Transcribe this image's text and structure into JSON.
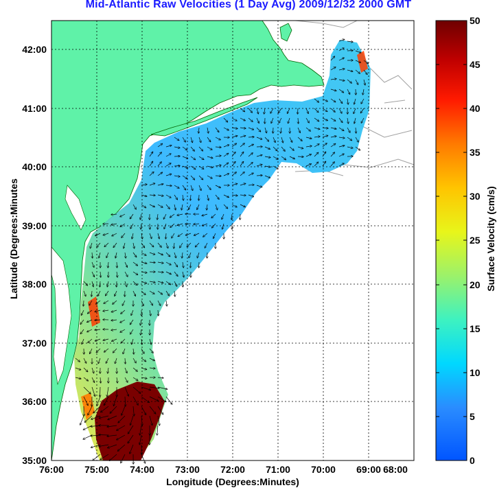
{
  "title": "Mid-Atlantic Raw Velocities (1 Day Avg) 2009/12/32 2000 GMT",
  "xlabel": "Longitude (Degrees:Minutes)",
  "ylabel": "Latitude (Degrees:Minutes",
  "colorbar": {
    "label": "Surface Velocity (cm/s)",
    "min": 0,
    "max": 50,
    "ticks": [
      "0",
      "5",
      "10",
      "15",
      "20",
      "25",
      "30",
      "35",
      "40",
      "45",
      "50"
    ]
  },
  "x_ticks": [
    "76:00",
    "75:00",
    "74:00",
    "73:00",
    "72:00",
    "71:00",
    "70:00",
    "69:00",
    "68:00"
  ],
  "y_ticks": [
    "35:00",
    "36:00",
    "37:00",
    "38:00",
    "39:00",
    "40:00",
    "41:00",
    "42:00"
  ],
  "colors": {
    "land": "#5ff2a8",
    "background": "#ffffff",
    "title": "#1a1aff",
    "isobath": "#a0a0a0",
    "coastline": "#006000"
  },
  "extent": {
    "lon_min": -76,
    "lon_max": -68,
    "lat_min": 35,
    "lat_max": 42.5
  }
}
